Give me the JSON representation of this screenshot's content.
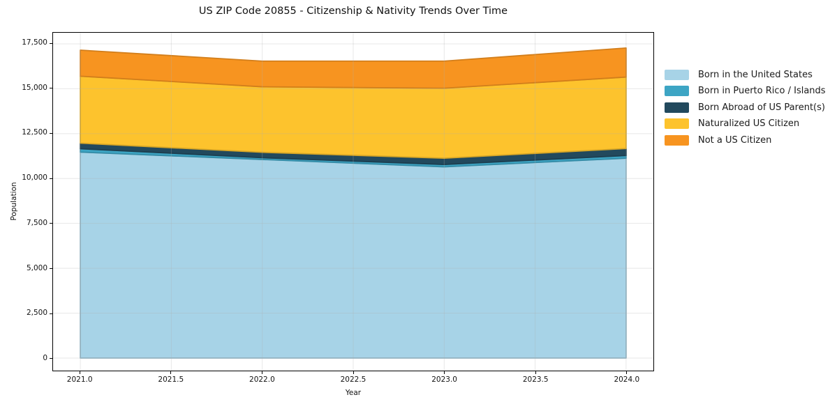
{
  "chart_data": {
    "type": "area",
    "stacked": true,
    "title": "US ZIP Code 20855 - Citizenship & Nativity Trends Over Time",
    "xlabel": "Year",
    "ylabel": "Population",
    "x": [
      2021,
      2022,
      2023,
      2024
    ],
    "series": [
      {
        "name": "Born in the United States",
        "color": "#a7d3e7",
        "values": [
          11470,
          11060,
          10650,
          11130
        ]
      },
      {
        "name": "Born in Puerto Rico / Islands",
        "color": "#3da5c4",
        "values": [
          190,
          100,
          130,
          150
        ]
      },
      {
        "name": "Born Abroad of US Parent(s)",
        "color": "#22495d",
        "values": [
          310,
          300,
          350,
          390
        ]
      },
      {
        "name": "Naturalized US Citizen",
        "color": "#fdc32d",
        "values": [
          3730,
          3650,
          3900,
          3980
        ]
      },
      {
        "name": "Not a US Citizen",
        "color": "#f79420",
        "values": [
          1450,
          1430,
          1510,
          1620
        ]
      }
    ],
    "x_ticks": [
      {
        "v": 2021.0,
        "label": "2021.0"
      },
      {
        "v": 2021.5,
        "label": "2021.5"
      },
      {
        "v": 2022.0,
        "label": "2022.0"
      },
      {
        "v": 2022.5,
        "label": "2022.5"
      },
      {
        "v": 2023.0,
        "label": "2023.0"
      },
      {
        "v": 2023.5,
        "label": "2023.5"
      },
      {
        "v": 2024.0,
        "label": "2024.0"
      }
    ],
    "y_ticks": [
      {
        "v": 0,
        "label": "0"
      },
      {
        "v": 2500,
        "label": "2,500"
      },
      {
        "v": 5000,
        "label": "5,000"
      },
      {
        "v": 7500,
        "label": "7,500"
      },
      {
        "v": 10000,
        "label": "10,000"
      },
      {
        "v": 12500,
        "label": "12,500"
      },
      {
        "v": 15000,
        "label": "15,000"
      },
      {
        "v": 17500,
        "label": "17,500"
      }
    ],
    "xlim": [
      2020.85,
      2024.15
    ],
    "ylim": [
      -700,
      18120
    ],
    "grid": true,
    "grid_color": "#b0b0b0",
    "grid_alpha": 0.3,
    "legend_position": "right"
  }
}
